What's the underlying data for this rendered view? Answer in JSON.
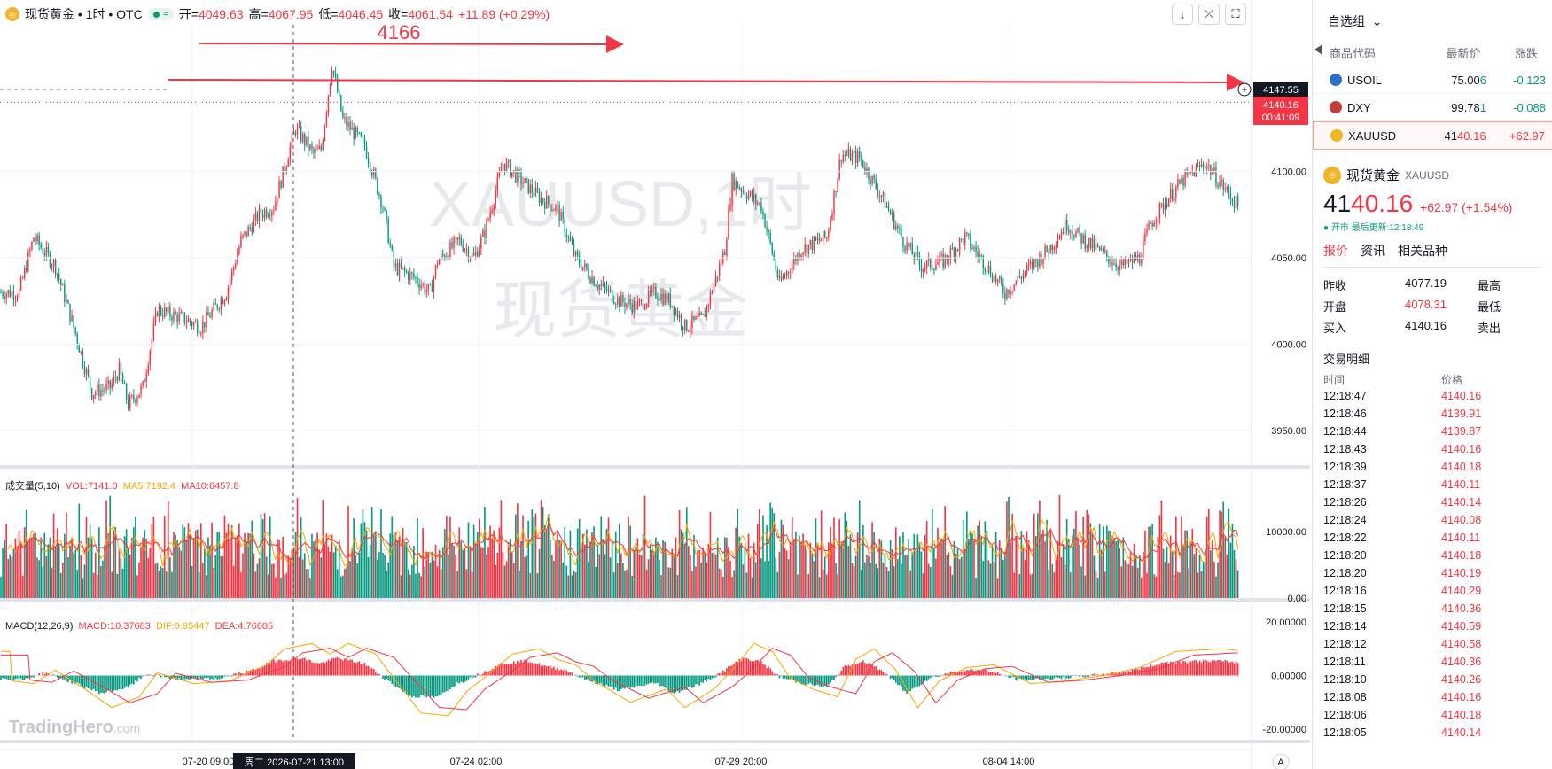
{
  "header": {
    "symbol_title": "现货黄金 • 1时 • OTC",
    "open_label": "开=",
    "open_value": "4049.63",
    "high_label": "高=",
    "high_value": "4067.95",
    "low_label": "低=",
    "low_value": "4046.45",
    "close_label": "收=",
    "close_value": "4061.54",
    "change": "+11.89 (+0.29%)"
  },
  "annotation": {
    "label": "4166"
  },
  "price_labels": {
    "alert": "4147.55",
    "last": "4140.16",
    "countdown": "00:41:09"
  },
  "watermark": {
    "line1": "XAUUSD,1时",
    "line2": "现货黄金",
    "logo": "TradingHero",
    "logo_suffix": ".com"
  },
  "volume_legend": {
    "title": "成交量(5,10)",
    "vol": "VOL:7141.0",
    "ma5": "MA5:7192.4",
    "ma10": "MA10:6457.8"
  },
  "macd_legend": {
    "title": "MACD(12,26,9)",
    "macd": "MACD:10.37683",
    "dif": "DIF:9.95447",
    "dea": "DEA:4.76605"
  },
  "crosshair_label": "周二 2026-07-21   13:00",
  "auto_label": "A",
  "colors": {
    "up": "#f23645",
    "down": "#089981",
    "ma5": "#f7a600",
    "ma10": "#f23645",
    "accent": "#f23645"
  },
  "chart_data": {
    "type": "candlestick",
    "price_axis": {
      "ticks": [
        "4100.00",
        "4050.00",
        "4000.00",
        "3950.00"
      ],
      "ylim": [
        3930,
        4185
      ]
    },
    "volume_axis": {
      "ticks": [
        "10000.00",
        "0.00"
      ],
      "ylim": [
        0,
        18000
      ]
    },
    "macd_axis": {
      "ticks": [
        "20.00000",
        "0.00000",
        "-20.00000"
      ],
      "ylim": [
        -24,
        24
      ]
    },
    "time_ticks": [
      "07-20 09:00",
      "07-24 02:00",
      "07-29 20:00",
      "08-04 14:00"
    ],
    "price_path": [
      [
        0,
        4030
      ],
      [
        10,
        4030
      ],
      [
        18,
        4062
      ],
      [
        30,
        4045
      ],
      [
        40,
        4010
      ],
      [
        50,
        3972
      ],
      [
        60,
        3975
      ],
      [
        65,
        3985
      ],
      [
        70,
        3965
      ],
      [
        78,
        3975
      ],
      [
        86,
        4020
      ],
      [
        100,
        4015
      ],
      [
        110,
        4010
      ],
      [
        124,
        4030
      ],
      [
        132,
        4060
      ],
      [
        142,
        4075
      ],
      [
        150,
        4080
      ],
      [
        162,
        4125
      ],
      [
        172,
        4110
      ],
      [
        176,
        4113
      ],
      [
        182,
        4162
      ],
      [
        188,
        4130
      ],
      [
        200,
        4115
      ],
      [
        210,
        4080
      ],
      [
        216,
        4045
      ],
      [
        228,
        4038
      ],
      [
        236,
        4030
      ],
      [
        240,
        4048
      ],
      [
        252,
        4060
      ],
      [
        260,
        4050
      ],
      [
        266,
        4065
      ],
      [
        276,
        4105
      ],
      [
        286,
        4095
      ],
      [
        296,
        4085
      ],
      [
        306,
        4078
      ],
      [
        316,
        4050
      ],
      [
        328,
        4035
      ],
      [
        340,
        4025
      ],
      [
        350,
        4022
      ],
      [
        360,
        4030
      ],
      [
        368,
        4025
      ],
      [
        376,
        4010
      ],
      [
        386,
        4015
      ],
      [
        398,
        4055
      ],
      [
        402,
        4095
      ],
      [
        418,
        4080
      ],
      [
        428,
        4035
      ],
      [
        440,
        4055
      ],
      [
        454,
        4062
      ],
      [
        462,
        4110
      ],
      [
        472,
        4108
      ],
      [
        486,
        4082
      ],
      [
        496,
        4060
      ],
      [
        506,
        4045
      ],
      [
        518,
        4048
      ],
      [
        530,
        4062
      ],
      [
        542,
        4045
      ],
      [
        552,
        4030
      ],
      [
        566,
        4045
      ],
      [
        576,
        4055
      ],
      [
        586,
        4070
      ],
      [
        590,
        4065
      ],
      [
        596,
        4060
      ],
      [
        606,
        4052
      ],
      [
        616,
        4045
      ],
      [
        626,
        4050
      ],
      [
        632,
        4070
      ],
      [
        642,
        4085
      ],
      [
        650,
        4095
      ],
      [
        662,
        4105
      ],
      [
        680,
        4080
      ]
    ],
    "volume_range": [
      3000,
      16000
    ],
    "macd_path": [
      [
        0,
        -2
      ],
      [
        12,
        -3
      ],
      [
        24,
        2
      ],
      [
        40,
        -5
      ],
      [
        55,
        -12
      ],
      [
        70,
        -8
      ],
      [
        80,
        1
      ],
      [
        100,
        -3
      ],
      [
        120,
        -2
      ],
      [
        140,
        4
      ],
      [
        150,
        10
      ],
      [
        165,
        12
      ],
      [
        175,
        8
      ],
      [
        185,
        12
      ],
      [
        200,
        8
      ],
      [
        210,
        -1
      ],
      [
        225,
        -14
      ],
      [
        240,
        -15
      ],
      [
        250,
        -6
      ],
      [
        265,
        2
      ],
      [
        275,
        8
      ],
      [
        290,
        10
      ],
      [
        300,
        6
      ],
      [
        310,
        4
      ],
      [
        320,
        -2
      ],
      [
        340,
        -10
      ],
      [
        360,
        -5
      ],
      [
        370,
        -12
      ],
      [
        386,
        -5
      ],
      [
        396,
        2
      ],
      [
        408,
        12
      ],
      [
        418,
        9
      ],
      [
        428,
        -1
      ],
      [
        440,
        -5
      ],
      [
        454,
        -8
      ],
      [
        464,
        6
      ],
      [
        474,
        10
      ],
      [
        486,
        2
      ],
      [
        498,
        -12
      ],
      [
        510,
        -2
      ],
      [
        525,
        3
      ],
      [
        540,
        4
      ],
      [
        560,
        -3
      ],
      [
        580,
        -2
      ],
      [
        600,
        0
      ],
      [
        620,
        3
      ],
      [
        640,
        9
      ],
      [
        665,
        10
      ],
      [
        680,
        9
      ]
    ]
  },
  "watchlist": {
    "title": "自选组",
    "columns": [
      "商品代码",
      "最新价",
      "涨跌"
    ],
    "rows": [
      {
        "symbol": "USOIL",
        "price": "75.00",
        "price_tail": "6",
        "change": "-0.123",
        "icon_color": "#2a6fc9",
        "dir": "down"
      },
      {
        "symbol": "DXY",
        "price": "99.78",
        "price_tail": "1",
        "change": "-0.088",
        "icon_color": "#c43c3c",
        "dir": "down"
      },
      {
        "symbol": "XAUUSD",
        "price": "41",
        "price_tail": "40.16",
        "change": "+62.97",
        "icon_color": "#f0b429",
        "dir": "up"
      }
    ]
  },
  "detail": {
    "name": "现货黄金",
    "code": "XAUUSD",
    "price_main": "41",
    "price_tail": "40.16",
    "change": "+62.97 (+1.54%)",
    "status": "● 开市  最后更新:12:18:49",
    "tabs": [
      "报价",
      "资讯",
      "相关品种"
    ],
    "stats": [
      {
        "label": "昨收",
        "value": "4077.19",
        "label2": "最高"
      },
      {
        "label": "开盘",
        "value": "4078.31",
        "label2": "最低"
      },
      {
        "label": "买入",
        "value": "4140.16",
        "label2": "卖出"
      }
    ],
    "trades_title": "交易明细",
    "trades_cols": [
      "时间",
      "价格"
    ],
    "trades": [
      [
        "12:18:47",
        "4140.16"
      ],
      [
        "12:18:46",
        "4139.91"
      ],
      [
        "12:18:44",
        "4139.87"
      ],
      [
        "12:18:43",
        "4140.16"
      ],
      [
        "12:18:39",
        "4140.18"
      ],
      [
        "12:18:37",
        "4140.11"
      ],
      [
        "12:18:26",
        "4140.14"
      ],
      [
        "12:18:24",
        "4140.08"
      ],
      [
        "12:18:22",
        "4140.11"
      ],
      [
        "12:18:20",
        "4140.18"
      ],
      [
        "12:18:20",
        "4140.19"
      ],
      [
        "12:18:16",
        "4140.29"
      ],
      [
        "12:18:15",
        "4140.36"
      ],
      [
        "12:18:14",
        "4140.59"
      ],
      [
        "12:18:12",
        "4140.58"
      ],
      [
        "12:18:11",
        "4140.36"
      ],
      [
        "12:18:10",
        "4140.26"
      ],
      [
        "12:18:08",
        "4140.16"
      ],
      [
        "12:18:06",
        "4140.18"
      ],
      [
        "12:18:05",
        "4140.14"
      ]
    ]
  }
}
